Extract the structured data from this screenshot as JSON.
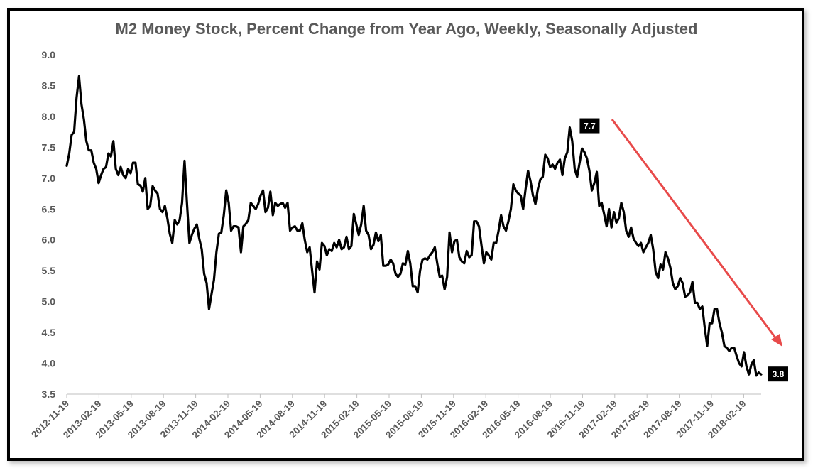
{
  "chart_data": {
    "type": "line",
    "title": "M2 Money Stock, Percent Change from Year Ago, Weekly, Seasonally Adjusted",
    "xlabel": "",
    "ylabel": "",
    "ylim": [
      3.5,
      9.0
    ],
    "yticks": [
      "3.5",
      "4.0",
      "4.5",
      "5.0",
      "5.5",
      "6.0",
      "6.5",
      "7.0",
      "7.5",
      "8.0",
      "8.5",
      "9.0"
    ],
    "xticks": [
      "2012-11-19",
      "2013-02-19",
      "2013-05-19",
      "2013-08-19",
      "2013-11-19",
      "2014-02-19",
      "2014-05-19",
      "2014-08-19",
      "2014-11-19",
      "2015-02-19",
      "2015-05-19",
      "2015-08-19",
      "2015-11-19",
      "2016-02-19",
      "2016-05-19",
      "2016-08-19",
      "2016-11-19",
      "2017-02-19",
      "2017-05-19",
      "2017-08-19",
      "2017-11-19",
      "2018-02-19"
    ],
    "grid": false,
    "legend": "none",
    "series": [
      {
        "values": [
          7.2,
          7.4,
          7.7,
          7.75,
          8.3,
          8.65,
          8.2,
          7.95,
          7.6,
          7.45,
          7.45,
          7.25,
          7.15,
          6.92,
          7.05,
          7.15,
          7.18,
          7.4,
          7.35,
          7.6,
          7.15,
          7.05,
          7.18,
          7.05,
          7.0,
          7.15,
          7.08,
          7.25,
          7.25,
          6.9,
          6.88,
          6.78,
          7.0,
          6.5,
          6.55,
          6.87,
          6.8,
          6.75,
          6.5,
          6.45,
          6.55,
          6.35,
          6.1,
          5.95,
          6.32,
          6.25,
          6.32,
          6.6,
          7.28,
          6.6,
          5.95,
          6.08,
          6.18,
          6.25,
          6.02,
          5.85,
          5.45,
          5.3,
          4.88,
          5.12,
          5.35,
          5.8,
          6.1,
          6.12,
          6.4,
          6.8,
          6.6,
          6.15,
          6.22,
          6.22,
          6.2,
          5.8,
          6.22,
          6.26,
          6.32,
          6.6,
          6.55,
          6.5,
          6.58,
          6.72,
          6.8,
          6.45,
          6.52,
          6.78,
          6.4,
          6.6,
          6.55,
          6.58,
          6.6,
          6.52,
          6.6,
          6.15,
          6.2,
          6.22,
          6.15,
          6.15,
          6.27,
          6.0,
          5.8,
          5.88,
          5.5,
          5.15,
          5.65,
          5.52,
          5.95,
          5.9,
          5.75,
          5.85,
          5.82,
          5.95,
          5.88,
          6.0,
          5.85,
          5.88,
          6.05,
          5.85,
          5.9,
          6.42,
          6.25,
          6.08,
          6.25,
          6.55,
          6.15,
          6.08,
          5.85,
          5.92,
          6.12,
          5.98,
          6.08,
          5.58,
          5.58,
          5.6,
          5.68,
          5.62,
          5.45,
          5.4,
          5.45,
          5.62,
          5.6,
          5.82,
          5.62,
          5.25,
          5.25,
          5.15,
          5.5,
          5.68,
          5.7,
          5.68,
          5.75,
          5.8,
          5.88,
          5.62,
          5.4,
          5.42,
          5.2,
          5.4,
          6.12,
          5.8,
          5.98,
          6.0,
          5.72,
          5.65,
          5.62,
          5.82,
          5.72,
          5.75,
          6.3,
          6.3,
          6.22,
          5.92,
          5.62,
          5.8,
          5.75,
          5.68,
          5.95,
          5.95,
          6.15,
          6.4,
          6.22,
          6.15,
          6.3,
          6.5,
          6.9,
          6.8,
          6.75,
          6.72,
          6.5,
          6.82,
          7.12,
          6.95,
          6.72,
          6.58,
          6.82,
          6.98,
          7.02,
          7.38,
          7.32,
          7.18,
          7.22,
          7.15,
          7.25,
          7.3,
          7.05,
          7.32,
          7.42,
          7.82,
          7.6,
          7.15,
          7.02,
          7.25,
          7.48,
          7.42,
          7.32,
          7.12,
          6.8,
          6.92,
          7.1,
          6.55,
          6.6,
          6.42,
          6.22,
          6.5,
          6.2,
          6.45,
          6.28,
          6.35,
          6.6,
          6.45,
          6.15,
          6.05,
          6.2,
          6.02,
          5.95,
          5.9,
          5.95,
          5.8,
          5.88,
          5.95,
          6.08,
          5.85,
          5.48,
          5.38,
          5.6,
          5.52,
          5.8,
          5.7,
          5.55,
          5.3,
          5.2,
          5.25,
          5.38,
          5.3,
          5.08,
          5.1,
          5.15,
          5.32,
          4.98,
          4.98,
          4.88,
          4.92,
          4.58,
          4.28,
          4.65,
          4.65,
          4.88,
          4.88,
          4.65,
          4.5,
          4.28,
          4.25,
          4.2,
          4.25,
          4.25,
          4.12,
          4.0,
          3.95,
          4.18,
          3.95,
          3.82,
          3.98,
          4.05,
          3.8,
          3.85,
          3.82
        ]
      }
    ],
    "annotations": [
      {
        "label": "7.7"
      },
      {
        "label": "3.8"
      }
    ],
    "colors": {
      "line": "#000000",
      "trend_arrow": "#e84a4a",
      "axis_text": "#595959"
    }
  }
}
